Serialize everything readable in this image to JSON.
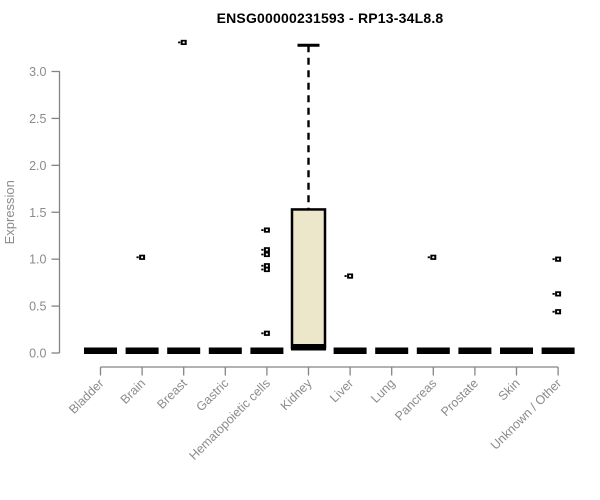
{
  "title": "ENSG00000231593 - RP13-34L8.8",
  "chart_data": {
    "type": "boxplot",
    "title": "ENSG00000231593 - RP13-34L8.8",
    "xlabel": "",
    "ylabel": "Expression",
    "ylim": [
      0,
      3.3
    ],
    "yticks": [
      "0.0",
      "0.5",
      "1.0",
      "1.5",
      "2.0",
      "2.5",
      "3.0"
    ],
    "grid": false,
    "legend": null,
    "categories": [
      "Bladder",
      "Brain",
      "Breast",
      "Gastric",
      "Hematopoietic cells",
      "Kidney",
      "Liver",
      "Lung",
      "Pancreas",
      "Prostate",
      "Skin",
      "Unknown / Other"
    ],
    "boxes": [
      {
        "category": "Bladder",
        "whisker_low": 0,
        "q1": 0,
        "median": 0,
        "q3": 0,
        "whisker_high": 0,
        "outliers": []
      },
      {
        "category": "Brain",
        "whisker_low": 0,
        "q1": 0,
        "median": 0,
        "q3": 0,
        "whisker_high": 0,
        "outliers": [
          1.02
        ]
      },
      {
        "category": "Breast",
        "whisker_low": 0,
        "q1": 0,
        "median": 0,
        "q3": 0,
        "whisker_high": 0,
        "outliers": [
          3.31
        ]
      },
      {
        "category": "Gastric",
        "whisker_low": 0,
        "q1": 0,
        "median": 0,
        "q3": 0,
        "whisker_high": 0,
        "outliers": []
      },
      {
        "category": "Hematopoietic cells",
        "whisker_low": 0,
        "q1": 0,
        "median": 0,
        "q3": 0,
        "whisker_high": 0,
        "outliers": [
          1.31,
          1.1,
          1.05,
          0.93,
          0.89,
          0.21
        ]
      },
      {
        "category": "Kidney",
        "whisker_low": 0,
        "q1": 0,
        "median": 0,
        "q3": 1.53,
        "whisker_high": 3.28,
        "outliers": []
      },
      {
        "category": "Liver",
        "whisker_low": 0,
        "q1": 0,
        "median": 0,
        "q3": 0,
        "whisker_high": 0,
        "outliers": [
          0.82
        ]
      },
      {
        "category": "Lung",
        "whisker_low": 0,
        "q1": 0,
        "median": 0,
        "q3": 0,
        "whisker_high": 0,
        "outliers": []
      },
      {
        "category": "Pancreas",
        "whisker_low": 0,
        "q1": 0,
        "median": 0,
        "q3": 0,
        "whisker_high": 0,
        "outliers": [
          1.02
        ]
      },
      {
        "category": "Prostate",
        "whisker_low": 0,
        "q1": 0,
        "median": 0,
        "q3": 0,
        "whisker_high": 0,
        "outliers": []
      },
      {
        "category": "Skin",
        "whisker_low": 0,
        "q1": 0,
        "median": 0,
        "q3": 0,
        "whisker_high": 0,
        "outliers": []
      },
      {
        "category": "Unknown / Other",
        "whisker_low": 0,
        "q1": 0,
        "median": 0,
        "q3": 0,
        "whisker_high": 0,
        "outliers": [
          1.0,
          0.63,
          0.44
        ]
      }
    ],
    "colors": {
      "box_fill": "#ECE7CB",
      "box_stroke": "#000000",
      "median": "#000000",
      "outlier": "#000000",
      "axis": "#848484",
      "tick_label": "#8b8b8b",
      "title": "#000000",
      "background": "#ffffff"
    }
  }
}
